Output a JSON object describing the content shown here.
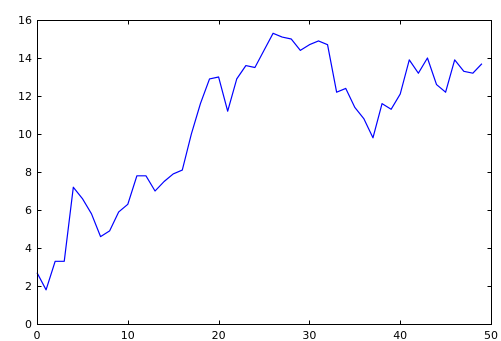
{
  "chart_data": {
    "type": "line",
    "title": "",
    "xlabel": "",
    "ylabel": "",
    "xlim": [
      0,
      50
    ],
    "ylim": [
      0,
      16
    ],
    "grid": false,
    "x_ticks": [
      {
        "value": 0,
        "label": "0"
      },
      {
        "value": 10,
        "label": "10"
      },
      {
        "value": 20,
        "label": "20"
      },
      {
        "value": 30,
        "label": "30"
      },
      {
        "value": 40,
        "label": "40"
      },
      {
        "value": 50,
        "label": "50"
      }
    ],
    "y_ticks": [
      {
        "value": 0,
        "label": "0"
      },
      {
        "value": 2,
        "label": "2"
      },
      {
        "value": 4,
        "label": "4"
      },
      {
        "value": 6,
        "label": "6"
      },
      {
        "value": 8,
        "label": "8"
      },
      {
        "value": 10,
        "label": "10"
      },
      {
        "value": 12,
        "label": "12"
      },
      {
        "value": 14,
        "label": "14"
      },
      {
        "value": 16,
        "label": "16"
      }
    ],
    "series": [
      {
        "color": "#0000ff",
        "x": [
          0,
          1,
          2,
          3,
          4,
          5,
          6,
          7,
          8,
          9,
          10,
          11,
          12,
          13,
          14,
          15,
          16,
          17,
          18,
          19,
          20,
          21,
          22,
          23,
          24,
          25,
          26,
          27,
          28,
          29,
          30,
          31,
          32,
          33,
          34,
          35,
          36,
          37,
          38,
          39,
          40,
          41,
          42,
          43,
          44,
          45,
          46,
          47,
          48,
          49
        ],
        "y": [
          2.7,
          1.8,
          3.3,
          3.3,
          7.2,
          6.6,
          5.8,
          4.6,
          4.9,
          5.9,
          6.3,
          7.8,
          7.8,
          7.0,
          7.5,
          7.9,
          8.1,
          10.0,
          11.6,
          12.9,
          13.0,
          11.2,
          12.9,
          13.6,
          13.5,
          14.4,
          15.3,
          15.1,
          15.0,
          14.4,
          14.7,
          14.9,
          14.7,
          12.2,
          12.4,
          11.4,
          10.8,
          9.8,
          11.6,
          11.3,
          12.1,
          13.9,
          13.2,
          14.0,
          12.6,
          12.2,
          13.9,
          13.3,
          13.2,
          13.7
        ]
      }
    ]
  }
}
